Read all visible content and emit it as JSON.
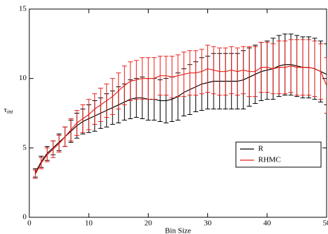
{
  "chart_data": {
    "type": "line",
    "x_label": "Bin Size",
    "y_label": "τ",
    "y_label_sub": "int",
    "x": [
      1,
      2,
      3,
      4,
      5,
      6,
      7,
      8,
      9,
      10,
      11,
      12,
      13,
      14,
      15,
      16,
      17,
      18,
      19,
      20,
      21,
      22,
      23,
      24,
      25,
      26,
      27,
      28,
      29,
      30,
      31,
      32,
      33,
      34,
      35,
      36,
      37,
      38,
      39,
      40,
      41,
      42,
      43,
      44,
      45,
      46,
      47,
      48,
      49,
      50
    ],
    "series": [
      {
        "name": "R",
        "color": "#000000",
        "values": [
          3.2,
          4.0,
          4.6,
          5.0,
          5.4,
          5.8,
          6.2,
          6.6,
          6.9,
          7.1,
          7.3,
          7.5,
          7.7,
          7.9,
          8.1,
          8.3,
          8.5,
          8.6,
          8.6,
          8.5,
          8.5,
          8.4,
          8.4,
          8.5,
          8.7,
          9.0,
          9.2,
          9.4,
          9.6,
          9.7,
          9.8,
          9.8,
          9.8,
          9.8,
          9.8,
          9.9,
          10.1,
          10.3,
          10.5,
          10.6,
          10.7,
          10.9,
          11.0,
          11.0,
          10.9,
          10.8,
          10.8,
          10.7,
          10.5,
          10.3
        ],
        "errors": [
          0.3,
          0.4,
          0.5,
          0.5,
          0.6,
          0.7,
          0.8,
          0.9,
          0.9,
          1.0,
          1.1,
          1.1,
          1.2,
          1.2,
          1.3,
          1.3,
          1.4,
          1.4,
          1.5,
          1.5,
          1.5,
          1.5,
          1.6,
          1.6,
          1.7,
          1.7,
          1.8,
          1.8,
          1.9,
          1.9,
          2.0,
          2.0,
          2.0,
          2.0,
          2.0,
          2.1,
          2.1,
          2.1,
          2.1,
          2.1,
          2.2,
          2.2,
          2.2,
          2.2,
          2.2,
          2.2,
          2.2,
          2.2,
          2.2,
          2.2
        ]
      },
      {
        "name": "RHMC",
        "color": "#e8201a",
        "values": [
          3.1,
          3.9,
          4.5,
          4.9,
          5.3,
          5.8,
          6.3,
          6.8,
          7.1,
          7.4,
          7.8,
          8.1,
          8.4,
          8.7,
          9.1,
          9.5,
          9.8,
          9.9,
          10.0,
          10.0,
          10.0,
          10.2,
          10.2,
          10.1,
          10.2,
          10.3,
          10.4,
          10.4,
          10.5,
          10.7,
          10.6,
          10.5,
          10.5,
          10.6,
          10.5,
          10.6,
          10.5,
          10.5,
          10.8,
          10.8,
          10.7,
          10.8,
          10.8,
          10.9,
          10.8,
          10.8,
          10.8,
          10.7,
          10.5,
          9.5
        ],
        "errors": [
          0.3,
          0.4,
          0.5,
          0.6,
          0.6,
          0.7,
          0.8,
          0.9,
          1.0,
          1.1,
          1.1,
          1.2,
          1.2,
          1.3,
          1.3,
          1.4,
          1.4,
          1.4,
          1.5,
          1.5,
          1.5,
          1.4,
          1.4,
          1.5,
          1.5,
          1.6,
          1.6,
          1.6,
          1.6,
          1.7,
          1.7,
          1.7,
          1.7,
          1.7,
          1.7,
          1.7,
          1.8,
          1.8,
          1.8,
          1.8,
          1.8,
          1.9,
          1.9,
          1.9,
          2.0,
          2.0,
          2.0,
          2.0,
          2.0,
          2.0
        ]
      }
    ],
    "xlim": [
      0,
      50
    ],
    "ylim": [
      0,
      15
    ],
    "xticks": [
      0,
      10,
      20,
      30,
      40,
      50
    ],
    "yticks": [
      0,
      5,
      10,
      15
    ],
    "legend": "lower right"
  }
}
